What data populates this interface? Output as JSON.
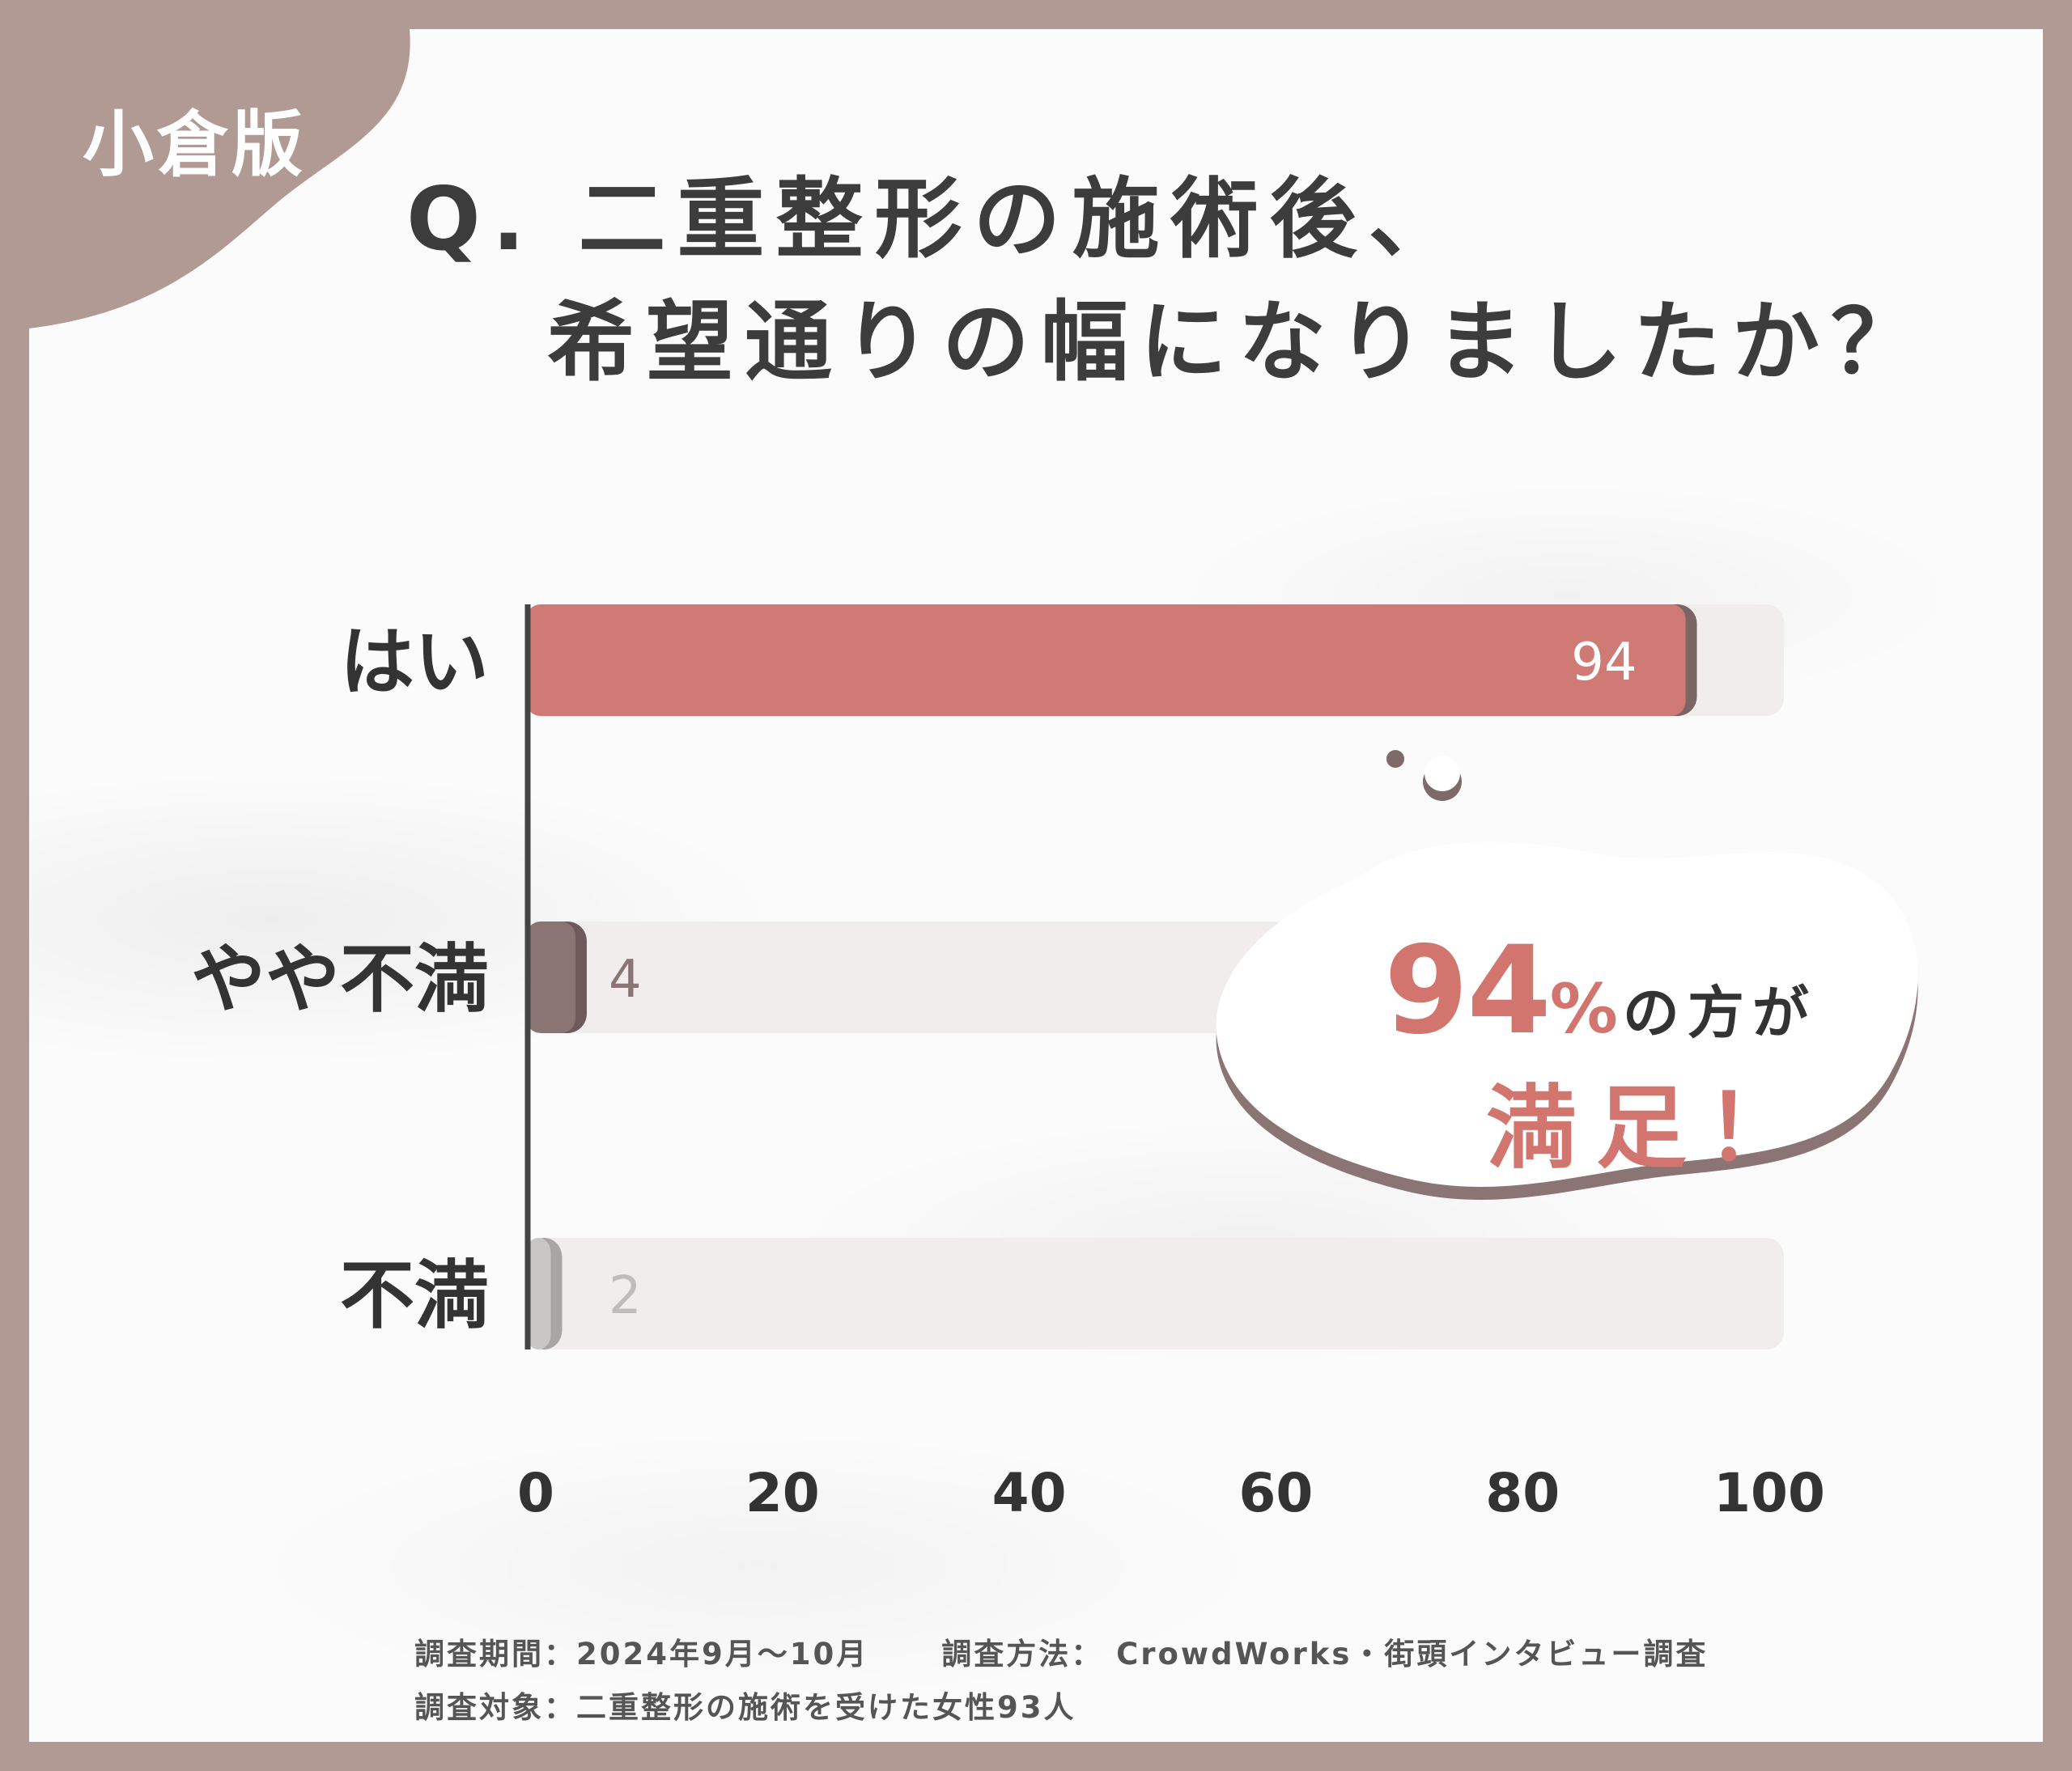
{
  "badge": "小倉版",
  "title": {
    "line1": "Q. 二重整形の施術後、",
    "line2": "希望通りの幅になりましたか？"
  },
  "colors": {
    "frame": "#b09a93",
    "bar_yes": "#d07a76",
    "bar_somewhat": "#8a7474",
    "bar_no": "#c9c6c6",
    "track": "#f1eded",
    "callout_accent": "#d3756f"
  },
  "chart_data": {
    "type": "bar",
    "orientation": "horizontal",
    "categories": [
      "はい",
      "やや不満",
      "不満"
    ],
    "values": [
      94,
      4,
      2
    ],
    "xlim": [
      0,
      100
    ],
    "xticks": [
      0,
      20,
      40,
      60,
      80,
      100
    ],
    "grid": false,
    "legend": "none"
  },
  "callout": {
    "percent": "94",
    "percent_sign": "%",
    "suffix": "の方が",
    "line2": "満足！"
  },
  "notes": {
    "period": "調査期間：2024年9月～10月",
    "method": "調査方法： CrowdWorks・街頭インタビュー調査",
    "target": "調査対象：二重整形の施術を受けた女性93人"
  }
}
